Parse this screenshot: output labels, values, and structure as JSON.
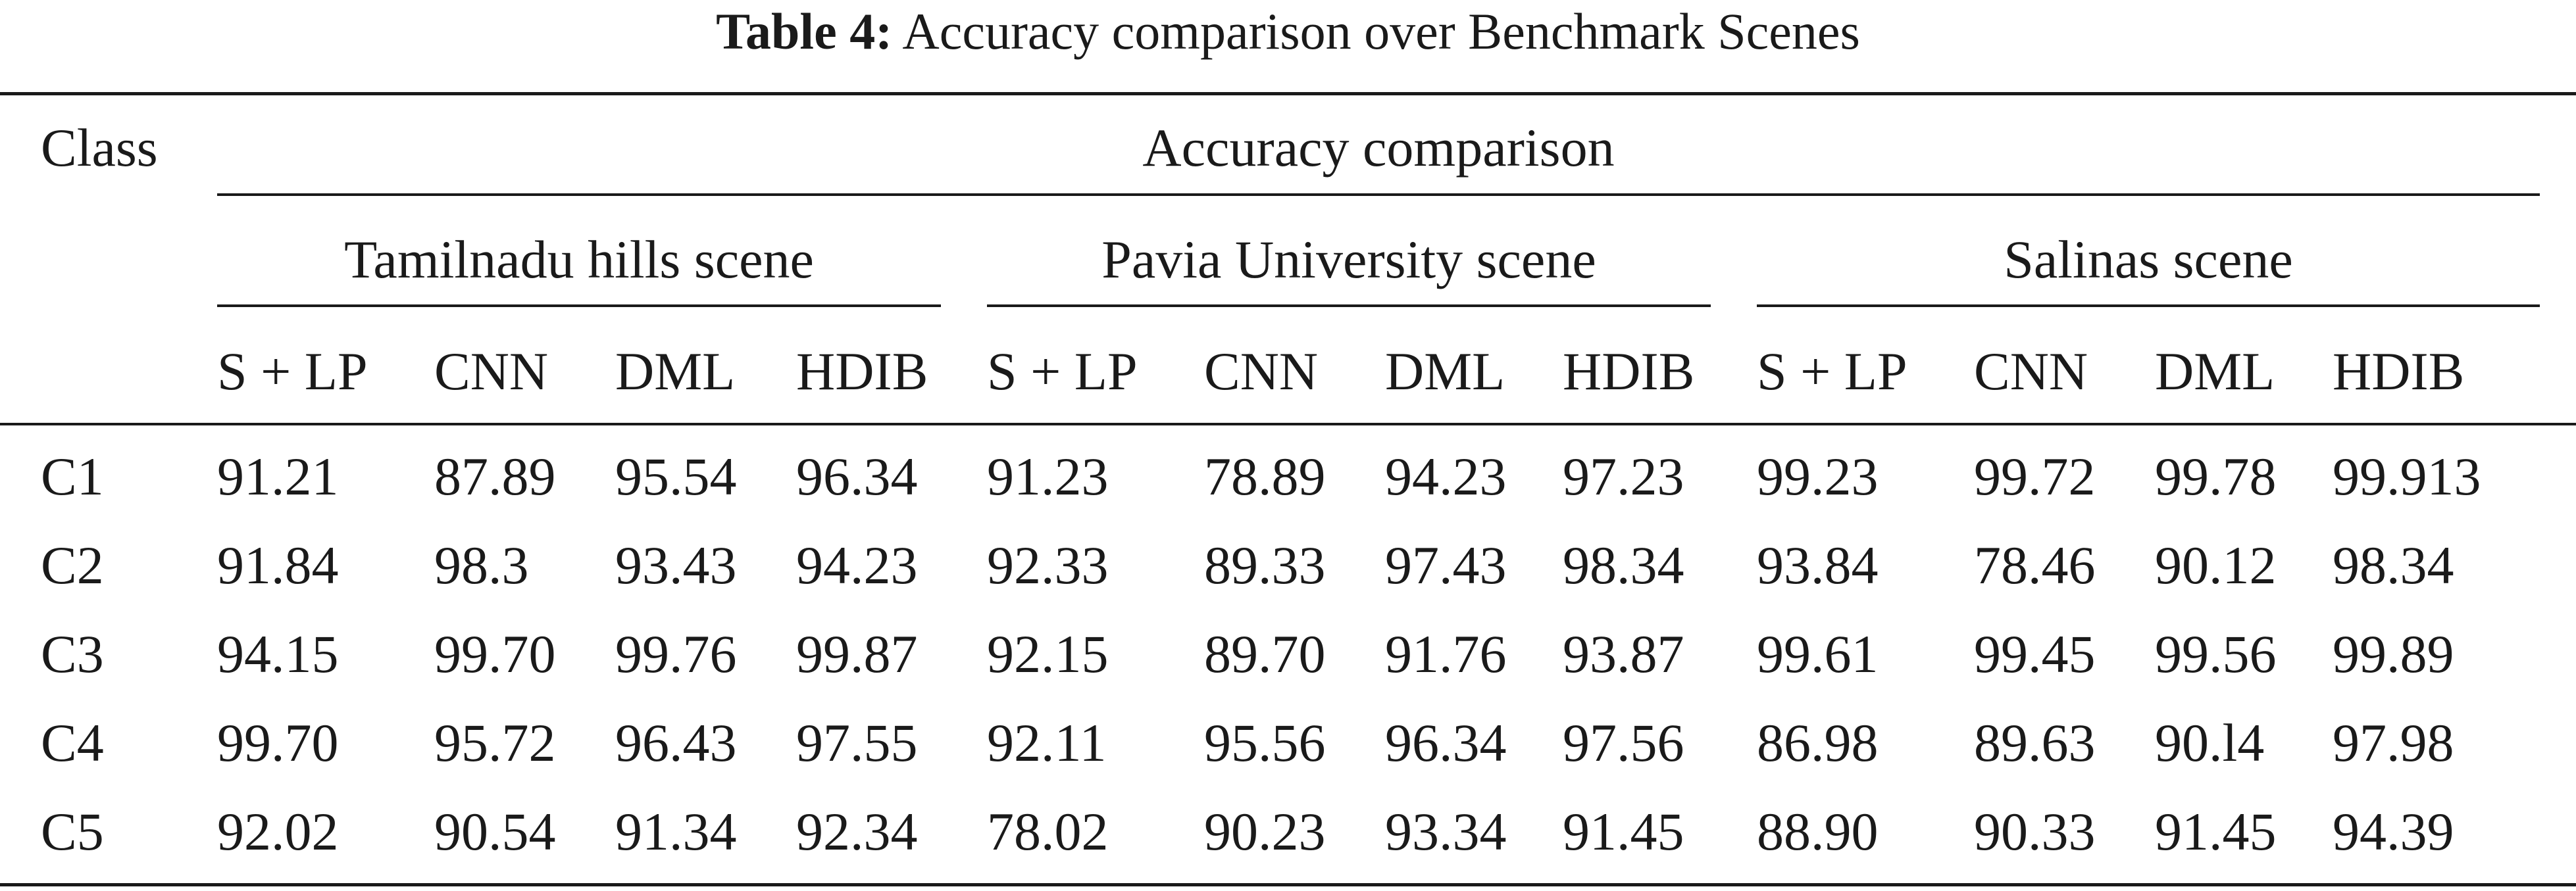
{
  "caption": {
    "label": "Table 4:",
    "text": "Accuracy comparison over Benchmark Scenes"
  },
  "table": {
    "row_header": "Class",
    "group_header": "Accuracy comparison",
    "scenes": [
      {
        "name": "Tamilnadu hills scene",
        "methods": [
          "S + LP",
          "CNN",
          "DML",
          "HDIB"
        ]
      },
      {
        "name": "Pavia University scene",
        "methods": [
          "S + LP",
          "CNN",
          "DML",
          "HDIB"
        ]
      },
      {
        "name": "Salinas scene",
        "methods": [
          "S + LP",
          "CNN",
          "DML",
          "HDIB"
        ]
      }
    ],
    "rows": [
      {
        "class": "C1",
        "values": [
          "91.21",
          "87.89",
          "95.54",
          "96.34",
          "91.23",
          "78.89",
          "94.23",
          "97.23",
          "99.23",
          "99.72",
          "99.78",
          "99.913"
        ]
      },
      {
        "class": "C2",
        "values": [
          "91.84",
          "98.3",
          "93.43",
          "94.23",
          "92.33",
          "89.33",
          "97.43",
          "98.34",
          "93.84",
          "78.46",
          "90.12",
          "98.34"
        ]
      },
      {
        "class": "C3",
        "values": [
          "94.15",
          "99.70",
          "99.76",
          "99.87",
          "92.15",
          "89.70",
          "91.76",
          "93.87",
          "99.61",
          "99.45",
          "99.56",
          "99.89"
        ]
      },
      {
        "class": "C4",
        "values": [
          "99.70",
          "95.72",
          "96.43",
          "97.55",
          "92.11",
          "95.56",
          "96.34",
          "97.56",
          "86.98",
          "89.63",
          "90.l4",
          "97.98"
        ]
      },
      {
        "class": "C5",
        "values": [
          "92.02",
          "90.54",
          "91.34",
          "92.34",
          "78.02",
          "90.23",
          "93.34",
          "91.45",
          "88.90",
          "90.33",
          "91.45",
          "94.39"
        ]
      }
    ]
  }
}
